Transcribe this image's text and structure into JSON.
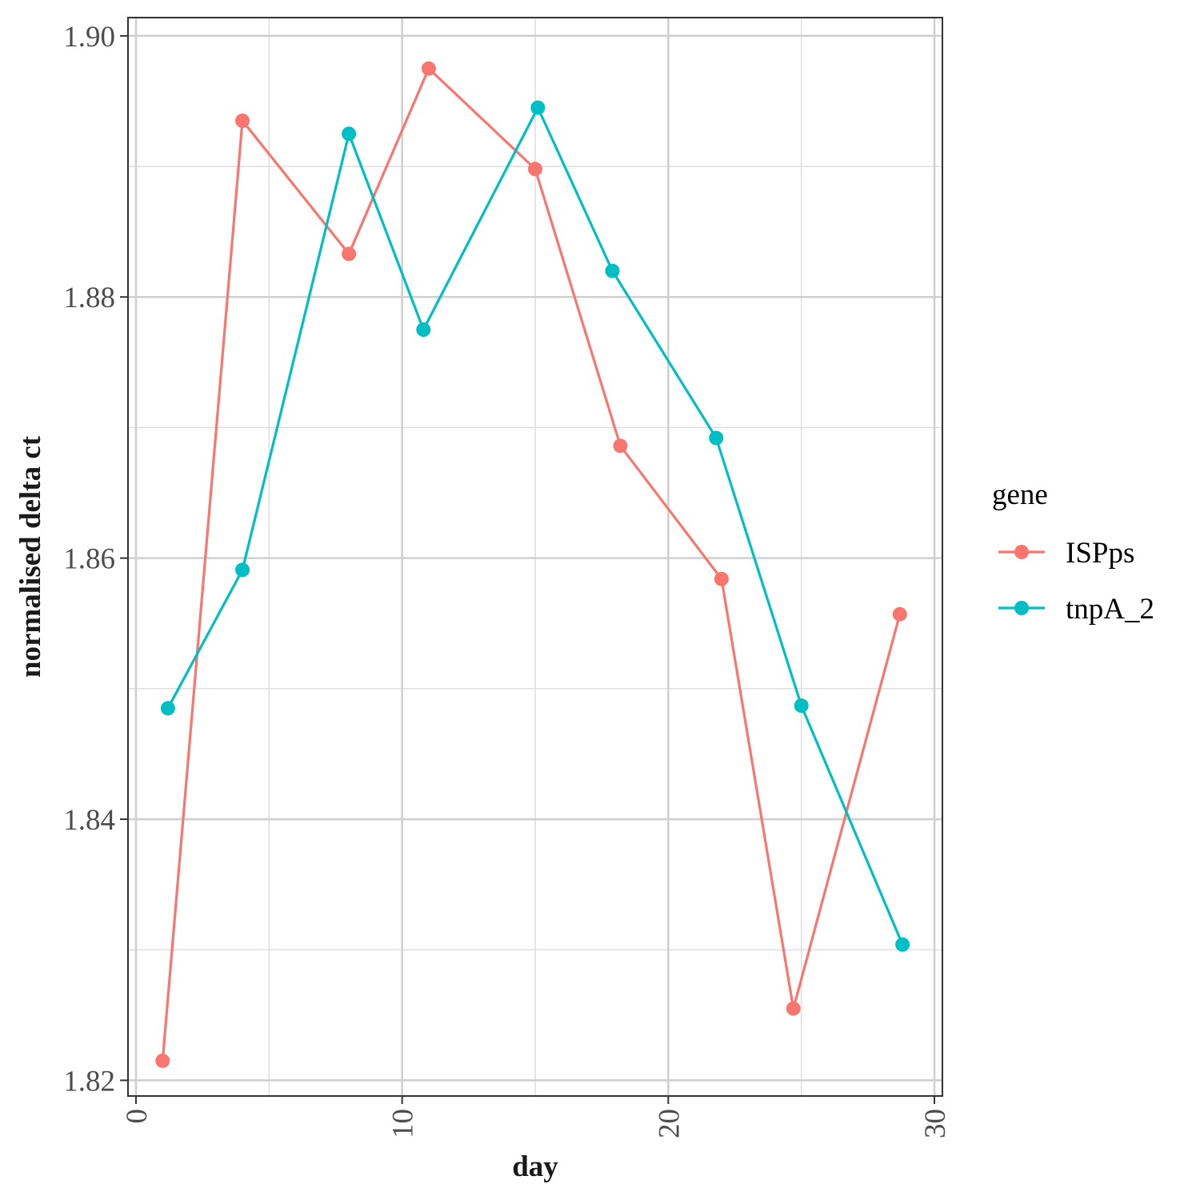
{
  "chart_data": {
    "type": "line",
    "title": "",
    "xlabel": "day",
    "ylabel": "normalised delta ct",
    "xlim": [
      -0.3,
      30.3
    ],
    "ylim": [
      1.8188,
      1.9014
    ],
    "x_ticks": [
      0,
      10,
      20,
      30
    ],
    "x_tick_labels": [
      "0",
      "10",
      "20",
      "30"
    ],
    "x_minor_ticks": [
      5,
      15,
      25
    ],
    "y_ticks": [
      1.82,
      1.84,
      1.86,
      1.88,
      1.9
    ],
    "y_tick_labels": [
      "1.82",
      "1.84",
      "1.86",
      "1.88",
      "1.90"
    ],
    "y_minor_ticks": [
      1.83,
      1.85,
      1.87,
      1.89
    ],
    "grid": true,
    "legend": {
      "title": "gene",
      "placement": "right"
    },
    "series": [
      {
        "name": "ISPps",
        "color": "#F8766D",
        "x": [
          1.0,
          4.0,
          8.0,
          11.0,
          15.0,
          18.2,
          22.0,
          24.7,
          28.7
        ],
        "y": [
          1.8215,
          1.8935,
          1.8833,
          1.8975,
          1.8898,
          1.8686,
          1.8584,
          1.8255,
          1.8557
        ]
      },
      {
        "name": "tnpA_2",
        "color": "#00BFC4",
        "x": [
          1.2,
          4.0,
          8.0,
          10.8,
          15.1,
          17.9,
          21.8,
          25.0,
          28.8
        ],
        "y": [
          1.8485,
          1.8591,
          1.8925,
          1.8775,
          1.8945,
          1.882,
          1.8692,
          1.8487,
          1.8304
        ]
      }
    ]
  }
}
